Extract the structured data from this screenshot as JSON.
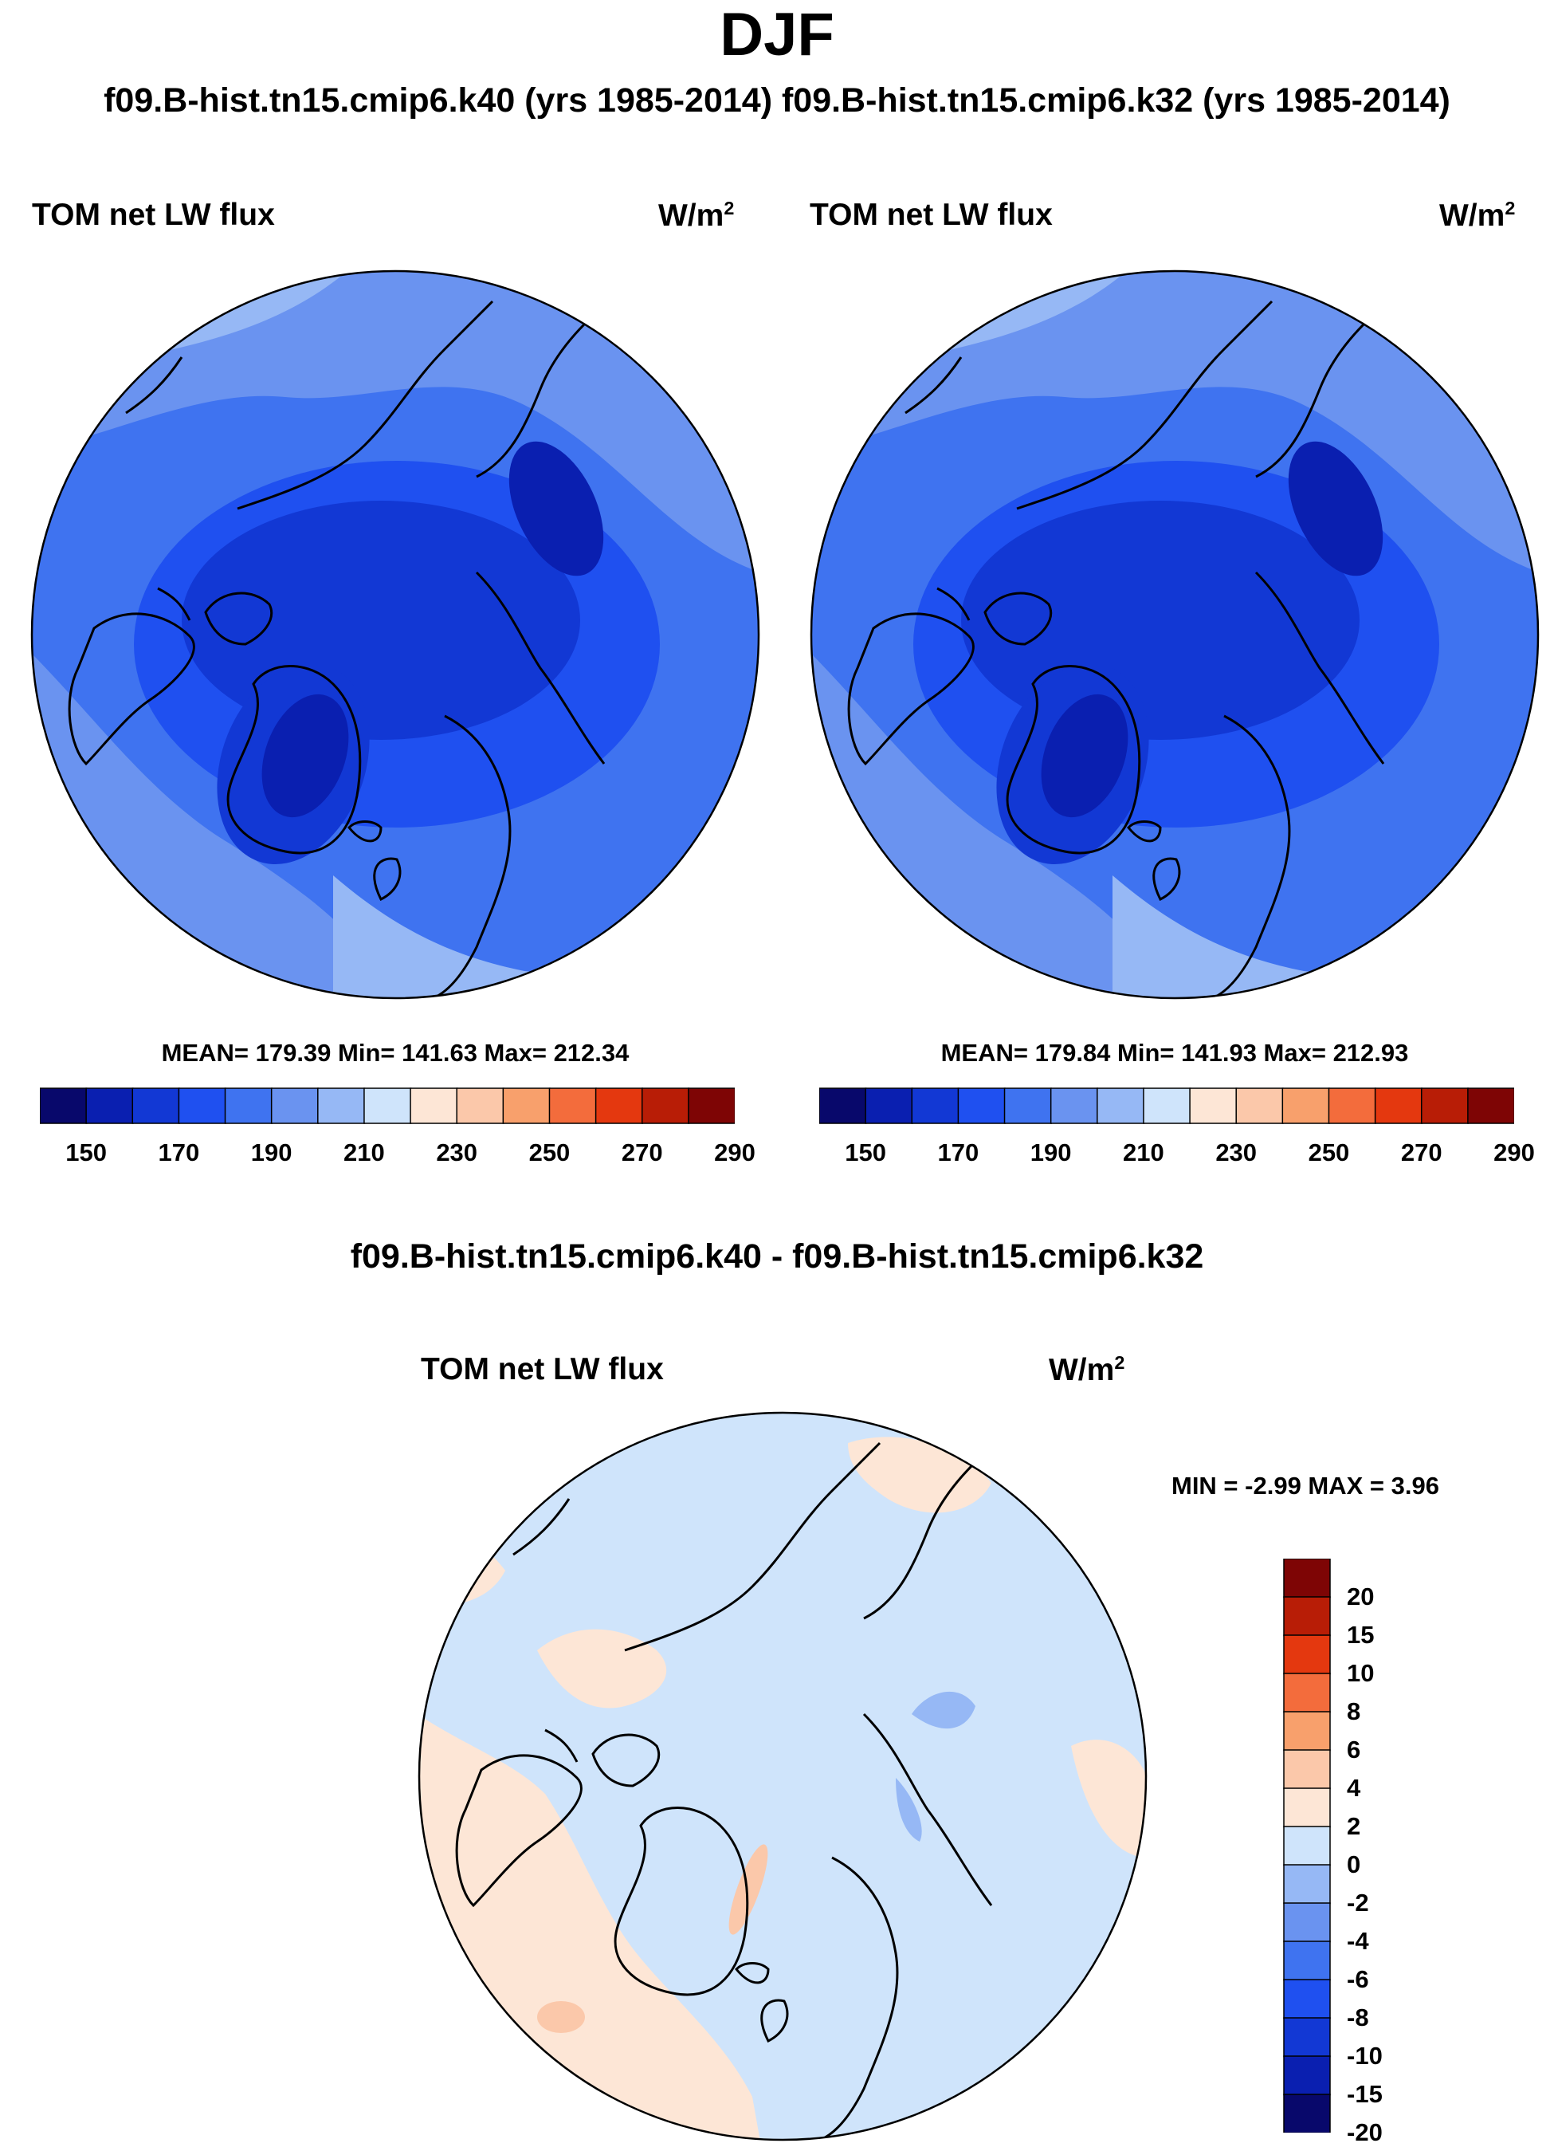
{
  "title": "DJF",
  "case_titles": "f09.B-hist.tn15.cmip6.k40 (yrs 1985-2014) f09.B-hist.tn15.cmip6.k32 (yrs 1985-2014)",
  "panels": [
    {
      "variable": "TOM net LW flux",
      "units": "W/m",
      "units_sup": "2",
      "stats": "MEAN= 179.39  Min= 141.63  Max= 212.34"
    },
    {
      "variable": "TOM net LW flux",
      "units": "W/m",
      "units_sup": "2",
      "stats": "MEAN= 179.84  Min= 141.93  Max= 212.93"
    }
  ],
  "colorbar_h": {
    "colors": [
      "#08086b",
      "#0a1fb0",
      "#1238d4",
      "#1f50f0",
      "#3f73f0",
      "#6a93f0",
      "#96b8f5",
      "#cfe4fb",
      "#fde6d6",
      "#fbc8aa",
      "#f8a06c",
      "#f36c3c",
      "#e4380f",
      "#b81d06",
      "#7e0505"
    ],
    "tick_labels": [
      "150",
      "170",
      "190",
      "210",
      "230",
      "250",
      "270",
      "290"
    ]
  },
  "diff_title": "f09.B-hist.tn15.cmip6.k40 - f09.B-hist.tn15.cmip6.k32",
  "diff_panel": {
    "variable": "TOM net LW flux",
    "units": "W/m",
    "units_sup": "2",
    "stats": "MIN =  -2.99 MAX =   3.96"
  },
  "colorbar_v": {
    "colors_top_to_bottom": [
      "#7e0505",
      "#b81d06",
      "#e4380f",
      "#f36c3c",
      "#f8a06c",
      "#fbc8aa",
      "#fde6d6",
      "#cfe4fb",
      "#96b8f5",
      "#6a93f0",
      "#3f73f0",
      "#1f50f0",
      "#1238d4",
      "#0a1fb0",
      "#08086b"
    ],
    "tick_labels": [
      "20",
      "15",
      "10",
      "8",
      "6",
      "4",
      "2",
      "0",
      "-2",
      "-4",
      "-6",
      "-8",
      "-10",
      "-15",
      "-20"
    ]
  }
}
